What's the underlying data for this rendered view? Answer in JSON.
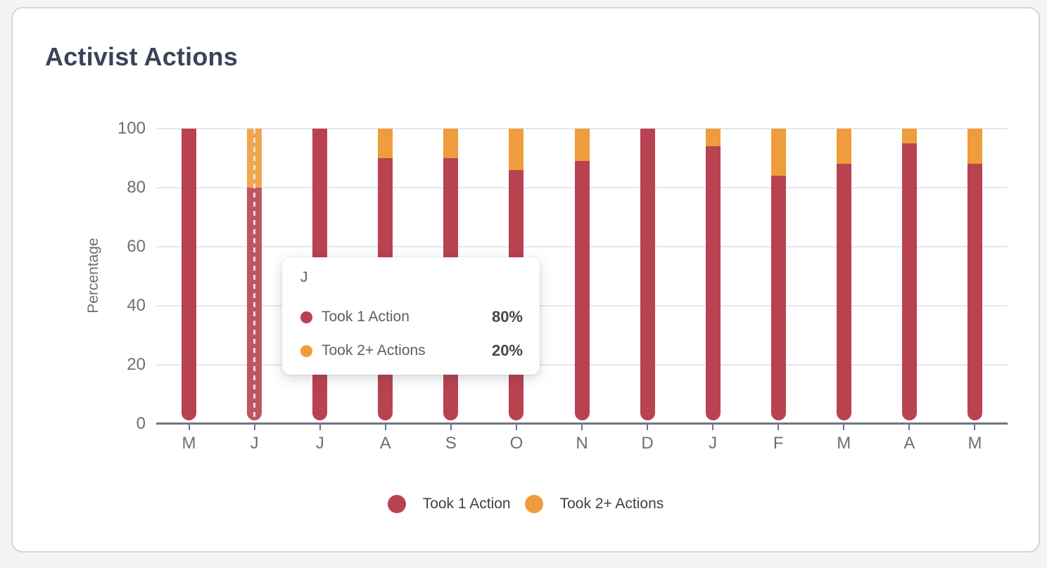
{
  "title": "Activist Actions",
  "chart_data": {
    "type": "bar",
    "stacked": true,
    "title": "Activist Actions",
    "xlabel": "",
    "ylabel": "Percentage",
    "ylim": [
      0,
      100
    ],
    "yticks": [
      0,
      20,
      40,
      60,
      80,
      100
    ],
    "grid": "horizontal",
    "legend_position": "bottom",
    "categories": [
      "M",
      "J",
      "J",
      "A",
      "S",
      "O",
      "N",
      "D",
      "J",
      "F",
      "M",
      "A",
      "M"
    ],
    "series": [
      {
        "name": "Took 1 Action",
        "color": "#b94251",
        "values": [
          100,
          80,
          100,
          90,
          90,
          86,
          89,
          100,
          94,
          84,
          88,
          95,
          88
        ]
      },
      {
        "name": "Took 2+ Actions",
        "color": "#ef9c3c",
        "values": [
          0,
          20,
          0,
          10,
          10,
          14,
          11,
          0,
          6,
          16,
          12,
          5,
          12
        ]
      }
    ],
    "hovered_index": 1
  },
  "tooltip": {
    "title": "J",
    "rows": [
      {
        "label": "Took 1 Action",
        "value": "80%",
        "color": "#b94251"
      },
      {
        "label": "Took 2+ Actions",
        "value": "20%",
        "color": "#ef9c3c"
      }
    ]
  },
  "legend": {
    "items": [
      {
        "label": "Took 1 Action",
        "color": "#b94251"
      },
      {
        "label": "Took 2+ Actions",
        "color": "#ef9c3c"
      }
    ]
  },
  "colors": {
    "page_bg": "#f4f4f5",
    "card_bg": "#ffffff",
    "card_border": "#d3d7dd",
    "title_text": "#3a4359",
    "axis_text": "#6b7076",
    "axis_line": "#71767e",
    "gridline": "#e3e7f1",
    "hover_dash": "#e2e7ee",
    "series_red": "#b94251",
    "series_orange": "#ef9c3c"
  }
}
